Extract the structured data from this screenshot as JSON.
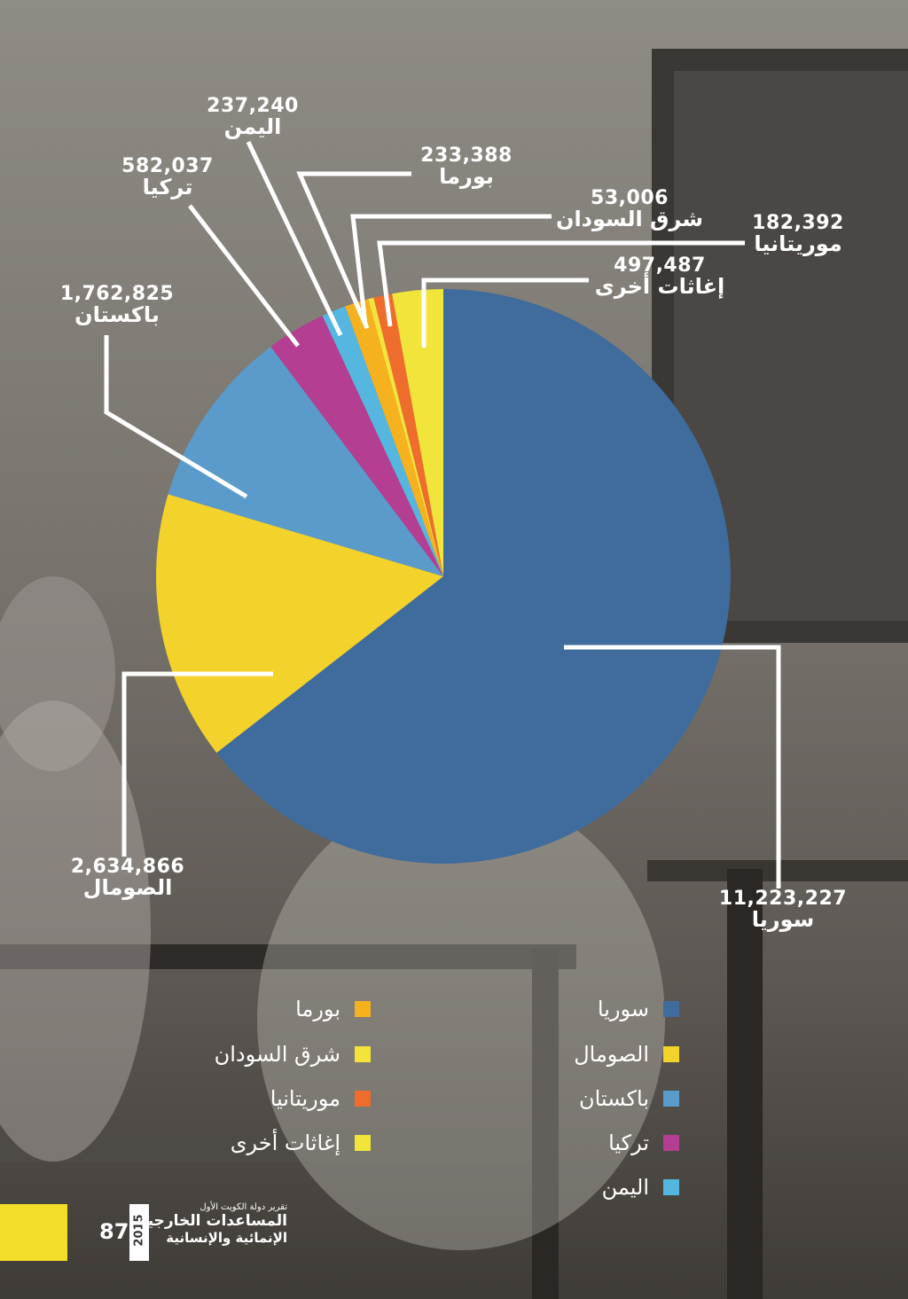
{
  "chart_data": {
    "type": "pie",
    "slices": [
      {
        "label": "سوريا",
        "value": 11223227,
        "value_text": "11,223,227",
        "color": "#3f6c9c"
      },
      {
        "label": "الصومال",
        "value": 2634866,
        "value_text": "2,634,866",
        "color": "#f3d22c"
      },
      {
        "label": "باكستان",
        "value": 1762825,
        "value_text": "1,762,825",
        "color": "#5a9bcb"
      },
      {
        "label": "تركيا",
        "value": 582037,
        "value_text": "582,037",
        "color": "#b43e92"
      },
      {
        "label": "اليمن",
        "value": 237240,
        "value_text": "237,240",
        "color": "#55b6e0"
      },
      {
        "label": "بورما",
        "value": 233388,
        "value_text": "233,388",
        "color": "#f6b21e"
      },
      {
        "label": "شرق السودان",
        "value": 53006,
        "value_text": "53,006",
        "color": "#f3e33a"
      },
      {
        "label": "موريتانيا",
        "value": 182392,
        "value_text": "182,392",
        "color": "#ee6d2c"
      },
      {
        "label": "إغاثات أخرى",
        "value": 497487,
        "value_text": "497,487",
        "color": "#f1e43a"
      }
    ],
    "legend_placement": "bottom"
  },
  "footer": {
    "page_number": "87",
    "year": "2015",
    "report_line1": "تقرير دولة الكويت الأول",
    "report_line2": "المساعدات الخارجية",
    "report_line3": "الإنمائية والإنسانية"
  },
  "colors": {
    "accent_yellow": "#f3de2c"
  }
}
